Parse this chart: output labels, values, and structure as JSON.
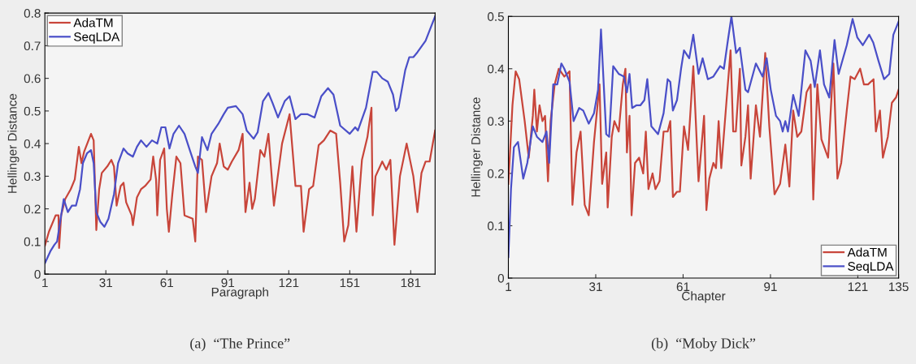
{
  "chart_data": [
    {
      "type": "line",
      "xlabel": "Paragraph",
      "ylabel": "Hellinger Distance",
      "xlim": [
        1,
        193
      ],
      "xticks": [
        1,
        31,
        61,
        91,
        121,
        151,
        181
      ],
      "ylim": [
        0,
        0.8
      ],
      "yticks": [
        0,
        0.1,
        0.2,
        0.3,
        0.4,
        0.5,
        0.6,
        0.7,
        0.8
      ],
      "legend": "top left",
      "grid": false,
      "annotations": [
        "(a)  “The Prince”"
      ],
      "series": [
        {
          "name": "AdaTM",
          "color": "#c8453a",
          "x": [
            1,
            3,
            6.3,
            7.7,
            8,
            9,
            11,
            13.7,
            15.7,
            17.7,
            19,
            20.3,
            23.7,
            25,
            26.3,
            27.7,
            29,
            31.7,
            33.7,
            35,
            36.3,
            38.3,
            39.7,
            41,
            43.7,
            44.3,
            46.3,
            48.3,
            50.3,
            53,
            54.3,
            55.7,
            56.3,
            57.7,
            59.7,
            61,
            62,
            63.7,
            65.7,
            67.7,
            69.7,
            73.7,
            75,
            76.3,
            78.3,
            80.3,
            83,
            85.7,
            87,
            89,
            91,
            93,
            96.3,
            98.3,
            99.7,
            101.7,
            103,
            104.3,
            107,
            109,
            111,
            113.7,
            117.7,
            121.4,
            124.3,
            127,
            128.3,
            131,
            133,
            135.7,
            138.3,
            141.4,
            144.3,
            146.3,
            148.3,
            150.3,
            152.3,
            154.3,
            157,
            159.7,
            161.7,
            162.3,
            163.7,
            167,
            169,
            171,
            173,
            175.7,
            179,
            182.3,
            184.3,
            186.3,
            188.3,
            190.3,
            193
          ],
          "values": [
            0.087,
            0.13,
            0.18,
            0.18,
            0.08,
            0.18,
            0.23,
            0.26,
            0.29,
            0.39,
            0.34,
            0.375,
            0.43,
            0.41,
            0.135,
            0.26,
            0.31,
            0.33,
            0.35,
            0.33,
            0.21,
            0.27,
            0.28,
            0.22,
            0.18,
            0.15,
            0.235,
            0.26,
            0.27,
            0.29,
            0.36,
            0.29,
            0.18,
            0.35,
            0.385,
            0.2,
            0.13,
            0.244,
            0.36,
            0.34,
            0.18,
            0.17,
            0.1,
            0.36,
            0.35,
            0.19,
            0.3,
            0.34,
            0.4,
            0.33,
            0.32,
            0.345,
            0.38,
            0.43,
            0.19,
            0.28,
            0.2,
            0.23,
            0.38,
            0.36,
            0.43,
            0.21,
            0.4,
            0.49,
            0.27,
            0.27,
            0.13,
            0.26,
            0.27,
            0.395,
            0.41,
            0.44,
            0.43,
            0.28,
            0.1,
            0.15,
            0.33,
            0.13,
            0.35,
            0.42,
            0.51,
            0.18,
            0.3,
            0.345,
            0.32,
            0.35,
            0.09,
            0.3,
            0.4,
            0.3,
            0.19,
            0.31,
            0.345,
            0.345,
            0.44
          ]
        },
        {
          "name": "SeqLDA",
          "color": "#4a4fc8",
          "x": [
            1,
            3.7,
            5.7,
            7,
            9,
            10.3,
            12.3,
            14.3,
            16.3,
            18.3,
            19.7,
            21.7,
            23.7,
            25,
            26.3,
            28.3,
            30.3,
            32.3,
            35,
            37,
            39.7,
            41.7,
            44.3,
            46.3,
            48.3,
            51,
            53.7,
            56.3,
            58.3,
            60.3,
            62.3,
            64.3,
            67,
            69.7,
            72.3,
            75,
            76.3,
            78.3,
            81,
            83,
            86.3,
            89,
            91,
            95,
            98.3,
            100.3,
            103.7,
            105.7,
            108.3,
            111,
            113,
            115.7,
            119,
            121.4,
            124.3,
            127,
            130.3,
            133.7,
            137,
            140.3,
            143,
            146.3,
            151,
            153.7,
            155,
            159,
            162.3,
            164.3,
            167,
            169.7,
            172.3,
            173.7,
            175,
            178.3,
            180.3,
            182.3,
            184.3,
            188.3,
            193
          ],
          "values": [
            0.033,
            0.07,
            0.09,
            0.1,
            0.18,
            0.23,
            0.19,
            0.21,
            0.21,
            0.26,
            0.34,
            0.37,
            0.38,
            0.34,
            0.19,
            0.16,
            0.145,
            0.17,
            0.245,
            0.34,
            0.385,
            0.37,
            0.36,
            0.39,
            0.41,
            0.39,
            0.41,
            0.4,
            0.45,
            0.45,
            0.385,
            0.43,
            0.455,
            0.43,
            0.38,
            0.33,
            0.31,
            0.42,
            0.38,
            0.43,
            0.46,
            0.49,
            0.51,
            0.515,
            0.49,
            0.44,
            0.415,
            0.435,
            0.53,
            0.555,
            0.525,
            0.48,
            0.53,
            0.545,
            0.475,
            0.49,
            0.49,
            0.48,
            0.545,
            0.57,
            0.55,
            0.455,
            0.43,
            0.45,
            0.44,
            0.51,
            0.62,
            0.62,
            0.6,
            0.59,
            0.55,
            0.5,
            0.51,
            0.625,
            0.665,
            0.665,
            0.68,
            0.715,
            0.79
          ]
        }
      ]
    },
    {
      "type": "line",
      "xlabel": "Chapter",
      "ylabel": "Hellinger Distance",
      "xlim": [
        1,
        135
      ],
      "xticks": [
        1,
        31,
        61,
        91,
        121,
        135
      ],
      "ylim": [
        0,
        0.5
      ],
      "yticks": [
        0,
        0.1,
        0.2,
        0.3,
        0.4,
        0.5
      ],
      "legend": "bottom right",
      "grid": false,
      "annotations": [
        "(b)  “Moby Dick”"
      ],
      "series": [
        {
          "name": "AdaTM",
          "color": "#c8453a",
          "x": [
            1,
            2.4,
            3.5,
            4.7,
            6.6,
            8,
            9.4,
            9.9,
            10.8,
            11.7,
            12.7,
            13.6,
            14.6,
            15.5,
            16.9,
            18.3,
            20.2,
            22,
            23,
            24.4,
            25.8,
            27.2,
            28.6,
            30.4,
            32.3,
            33.2,
            34.6,
            35.1,
            36.5,
            37.4,
            38.9,
            40.3,
            41.2,
            41.7,
            42.6,
            43.3,
            44.5,
            45.9,
            47.3,
            48.2,
            49.1,
            50.5,
            51.5,
            52.9,
            54.3,
            55.7,
            56.6,
            57.5,
            58.9,
            59.9,
            61.3,
            62.7,
            64.5,
            66.3,
            68.2,
            69,
            70,
            71.4,
            72.3,
            73.2,
            74.1,
            76,
            77.3,
            78.2,
            79.1,
            80.5,
            81,
            82.4,
            83.3,
            84.2,
            86,
            87.4,
            89.2,
            90.6,
            92.4,
            94.3,
            96.1,
            97.5,
            98.8,
            100.2,
            101.6,
            103.4,
            104.8,
            105.7,
            107.1,
            108.5,
            110.8,
            112.6,
            114,
            115.3,
            117.2,
            118.5,
            119.9,
            121.8,
            123.1,
            124.5,
            126.4,
            127.2,
            128.6,
            129.6,
            131.3,
            132.7,
            134.1,
            135
          ],
          "values": [
            0.18,
            0.33,
            0.395,
            0.38,
            0.3,
            0.23,
            0.31,
            0.36,
            0.28,
            0.33,
            0.3,
            0.31,
            0.185,
            0.3,
            0.37,
            0.4,
            0.385,
            0.395,
            0.14,
            0.24,
            0.28,
            0.14,
            0.12,
            0.26,
            0.37,
            0.18,
            0.24,
            0.135,
            0.27,
            0.3,
            0.28,
            0.37,
            0.4,
            0.24,
            0.31,
            0.12,
            0.22,
            0.23,
            0.2,
            0.28,
            0.17,
            0.2,
            0.17,
            0.185,
            0.28,
            0.28,
            0.3,
            0.155,
            0.165,
            0.165,
            0.29,
            0.245,
            0.405,
            0.185,
            0.31,
            0.13,
            0.19,
            0.22,
            0.21,
            0.3,
            0.21,
            0.345,
            0.435,
            0.28,
            0.28,
            0.4,
            0.215,
            0.27,
            0.33,
            0.19,
            0.33,
            0.27,
            0.43,
            0.29,
            0.16,
            0.18,
            0.255,
            0.175,
            0.32,
            0.27,
            0.28,
            0.355,
            0.37,
            0.15,
            0.37,
            0.265,
            0.23,
            0.41,
            0.19,
            0.22,
            0.32,
            0.385,
            0.38,
            0.4,
            0.37,
            0.37,
            0.38,
            0.28,
            0.32,
            0.23,
            0.27,
            0.335,
            0.345,
            0.36
          ]
        },
        {
          "name": "SeqLDA",
          "color": "#4a4fc8",
          "x": [
            1,
            1.9,
            2.9,
            4.3,
            6.1,
            7.5,
            9.4,
            10.8,
            12.7,
            14.1,
            15,
            16.4,
            17.8,
            19.2,
            20.2,
            22,
            23.4,
            25.3,
            26.7,
            28.6,
            30.4,
            31.8,
            32.8,
            33.7,
            34.6,
            35.6,
            37,
            38.9,
            40.7,
            41.7,
            42.6,
            43.5,
            44.9,
            46.3,
            47.7,
            48.7,
            50.1,
            52.4,
            54.3,
            55.7,
            56.6,
            57.5,
            58.9,
            60.3,
            61.3,
            63.1,
            64.5,
            66.3,
            67.7,
            69.5,
            71.4,
            73.7,
            75,
            76.4,
            77.6,
            79.2,
            80.5,
            82.4,
            83.3,
            86,
            88.3,
            89.7,
            91.1,
            92.9,
            94.3,
            95.2,
            96.1,
            97,
            98.8,
            100.7,
            103,
            104.8,
            106.2,
            108,
            109.4,
            111.2,
            113,
            114.4,
            117.2,
            119.2,
            120.8,
            122.7,
            124.9,
            126.3,
            128.1,
            130,
            131.8,
            133.2,
            135
          ],
          "values": [
            0.04,
            0.17,
            0.25,
            0.26,
            0.19,
            0.22,
            0.29,
            0.27,
            0.26,
            0.28,
            0.22,
            0.37,
            0.37,
            0.41,
            0.4,
            0.375,
            0.3,
            0.325,
            0.32,
            0.295,
            0.315,
            0.36,
            0.475,
            0.375,
            0.275,
            0.27,
            0.405,
            0.39,
            0.385,
            0.355,
            0.39,
            0.325,
            0.33,
            0.33,
            0.34,
            0.38,
            0.29,
            0.275,
            0.315,
            0.38,
            0.375,
            0.32,
            0.34,
            0.4,
            0.435,
            0.42,
            0.465,
            0.39,
            0.42,
            0.38,
            0.385,
            0.405,
            0.4,
            0.455,
            0.5,
            0.43,
            0.44,
            0.36,
            0.355,
            0.41,
            0.385,
            0.42,
            0.36,
            0.31,
            0.3,
            0.28,
            0.3,
            0.28,
            0.35,
            0.31,
            0.435,
            0.415,
            0.365,
            0.435,
            0.37,
            0.345,
            0.455,
            0.39,
            0.445,
            0.495,
            0.46,
            0.445,
            0.465,
            0.45,
            0.415,
            0.38,
            0.39,
            0.465,
            0.49
          ]
        }
      ]
    }
  ]
}
